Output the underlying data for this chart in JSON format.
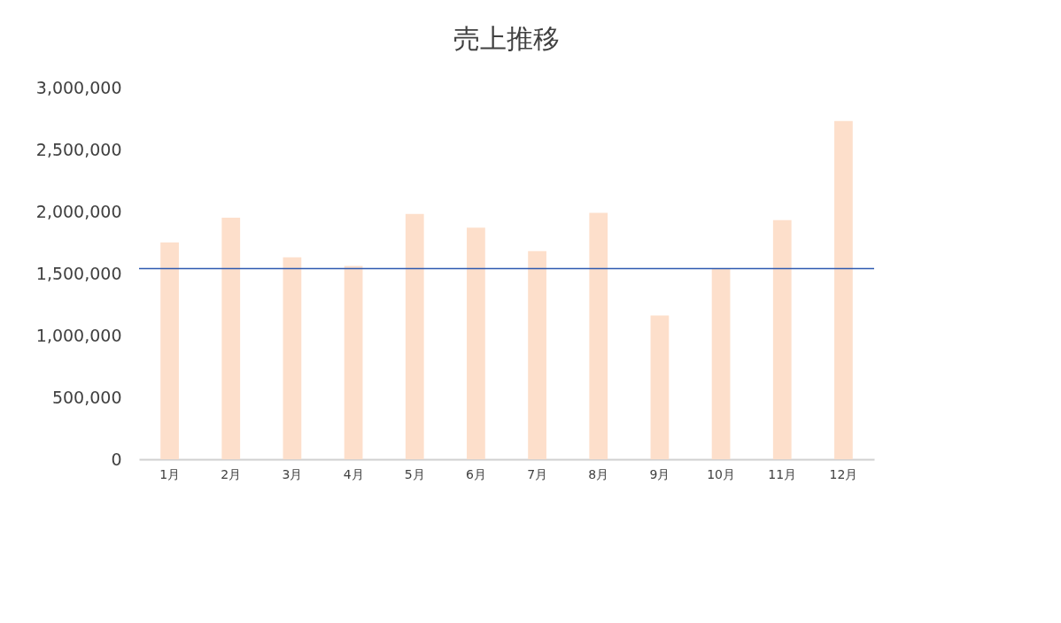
{
  "chart_data": {
    "type": "bar",
    "title": "売上推移",
    "categories": [
      "1月",
      "2月",
      "3月",
      "4月",
      "5月",
      "6月",
      "7月",
      "8月",
      "9月",
      "10月",
      "11月",
      "12月"
    ],
    "values": [
      1750000,
      1950000,
      1630000,
      1560000,
      1980000,
      1870000,
      1680000,
      1990000,
      1160000,
      1540000,
      1930000,
      2730000
    ],
    "color": "#fddfcb",
    "ylim": [
      0,
      3000000
    ],
    "yticks": [
      0,
      {
        "value": 500000,
        "label": "500,000"
      },
      {
        "value": 1000000,
        "label": "1,000,000"
      },
      {
        "value": 1500000,
        "label": "1,500,000"
      },
      {
        "value": 2000000,
        "label": "2,000,000"
      },
      {
        "value": 2500000,
        "label": "2,500,000"
      },
      {
        "value": 3000000,
        "label": "3,000,000"
      }
    ],
    "grid": false,
    "ref_lines": [
      {
        "axis": "y",
        "value": 1540000,
        "color": "#2f5ab0",
        "line_style": "solid"
      }
    ]
  }
}
